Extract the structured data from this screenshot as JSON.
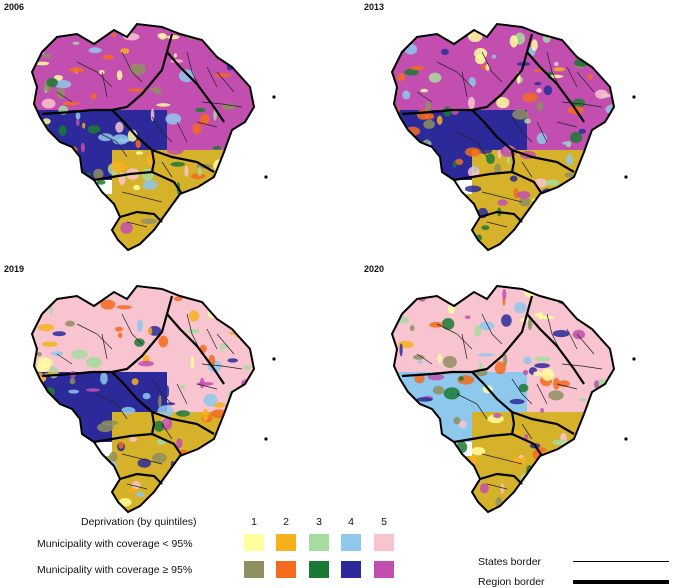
{
  "panels": [
    {
      "year": "2006",
      "dominant": {
        "north": "#c24fb0",
        "center": "#2c2a9a",
        "south": "#d6b12a",
        "east": "#c24fb0"
      }
    },
    {
      "year": "2013",
      "dominant": {
        "north": "#c24fb0",
        "center": "#2c2a9a",
        "south": "#d6b12a",
        "east": "#c24fb0"
      }
    },
    {
      "year": "2019",
      "dominant": {
        "north": "#f8c4cf",
        "center": "#2c2a9a",
        "south": "#d6b12a",
        "east": "#f8c4cf"
      }
    },
    {
      "year": "2020",
      "dominant": {
        "north": "#f8c4cf",
        "center": "#8ec8ec",
        "south": "#d6b12a",
        "east": "#f8c4cf"
      }
    }
  ],
  "legend": {
    "title": "Deprivation (by quintiles)",
    "quintiles": [
      "1",
      "2",
      "3",
      "4",
      "5"
    ],
    "row_low_label": "Municipality with coverage < 95%",
    "row_high_label": "Municipality with coverage ≥ 95%",
    "colors_low": [
      "#ffff9e",
      "#f7b21b",
      "#a6dca0",
      "#8ec8ec",
      "#f8c4cf"
    ],
    "colors_high": [
      "#8f8f62",
      "#f46b1f",
      "#1a7a34",
      "#2c2a9a",
      "#c24fb0"
    ],
    "states_border_label": "States border",
    "region_border_label": "Region border"
  }
}
